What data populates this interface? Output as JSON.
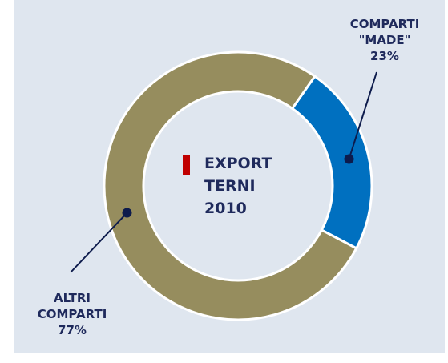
{
  "chart_data": {
    "type": "donut",
    "title": "EXPORT TERNI 2010",
    "categories": [
      "COMPARTI \"MADE\"",
      "ALTRI COMPARTI"
    ],
    "values": [
      23,
      77
    ],
    "value_labels": [
      "23%",
      "77%"
    ],
    "colors": [
      "#0070c0",
      "#968d5e"
    ]
  }
}
